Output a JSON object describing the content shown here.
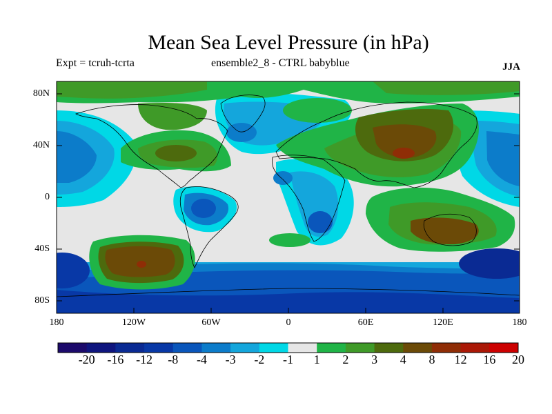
{
  "header": {
    "title": "Mean Sea Level Pressure (in hPa)",
    "experiment": "Expt = tcruh-tcrta",
    "ensemble": "ensemble2_8 - CTRL babyblue",
    "season": "JJA"
  },
  "axes": {
    "longitude_labels": [
      "180",
      "120W",
      "60W",
      "0",
      "60E",
      "120E",
      "180"
    ],
    "latitude_labels": [
      "80N",
      "40N",
      "0",
      "40S",
      "80S"
    ]
  },
  "colorbar": {
    "labels": [
      "-20",
      "-16",
      "-12",
      "-8",
      "-4",
      "-3",
      "-2",
      "-1",
      "1",
      "2",
      "3",
      "4",
      "8",
      "12",
      "16",
      "20"
    ],
    "colors": [
      "#1c0a6b",
      "#0f157e",
      "#0a2a93",
      "#0838a6",
      "#0a56bb",
      "#0c7cca",
      "#14a6dc",
      "#00d8e6",
      "#e6e6e6",
      "#20b447",
      "#3f9a28",
      "#4d6a0d",
      "#6b4a07",
      "#8f2d06",
      "#aa1806",
      "#cc0000"
    ]
  },
  "colors": {
    "background": "#ffffff",
    "land_outline": "#000000",
    "frame": "#000000"
  }
}
